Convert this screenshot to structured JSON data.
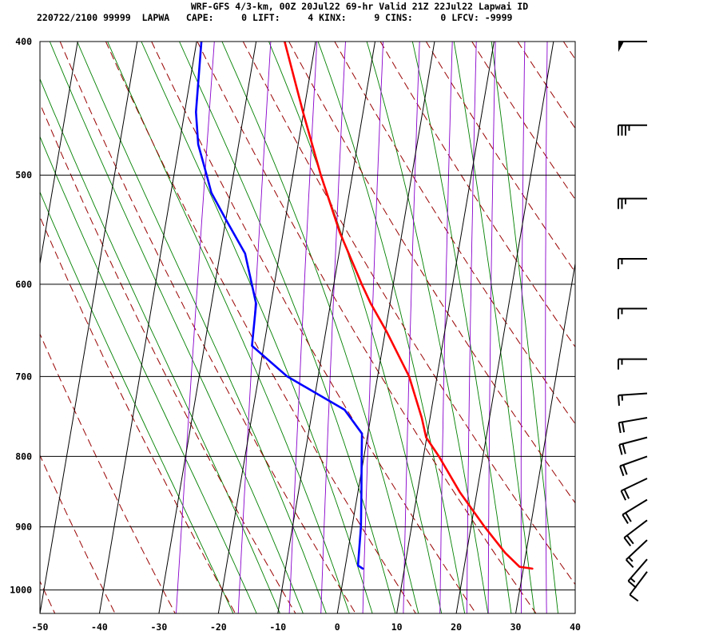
{
  "header": {
    "title_line": "WRF-GFS 4/3-km, 00Z 20Jul22 69-hr Valid 21Z 22Jul22 Lapwai ID",
    "stats_line": "220722/2100 99999  LAPWA   CAPE:     0 LIFT:     4 KINX:     9 CINS:     0 LFCV: -9999"
  },
  "chart_data": {
    "type": "line",
    "diagram": "skew-T log-p sounding",
    "title": "WRF-GFS 4/3-km, 00Z 20Jul22 69-hr Valid 21Z 22Jul22 Lapwai ID",
    "xlabel": "",
    "ylabel": "",
    "x_ticks": [
      "-50",
      "-40",
      "-30",
      "-20",
      "-10",
      "0",
      "10",
      "20",
      "30",
      "40"
    ],
    "p_ticks": [
      "400",
      "500",
      "600",
      "700",
      "800",
      "900",
      "1000"
    ],
    "xlim": [
      -50,
      40
    ],
    "plim": [
      400,
      1040
    ],
    "y_scale": "log",
    "grid": true,
    "colors": {
      "temperature": "#ff0000",
      "dewpoint": "#0000ff",
      "dry_adiabats": "#990000",
      "moist_adiabats": "#008000",
      "mixing_ratio": "#8800cc",
      "grid": "#000000"
    },
    "series": [
      {
        "key": "temperature",
        "p": [
          400,
          450,
          500,
          550,
          600,
          620,
          650,
          700,
          750,
          775,
          800,
          850,
          900,
          940,
          962,
          965
        ],
        "values": [
          -25.2,
          -20.1,
          -15.3,
          -10.5,
          -5.3,
          -3.2,
          0.3,
          5.3,
          8.6,
          9.9,
          12.6,
          17.2,
          22.3,
          26.5,
          29.3,
          31.5
        ]
      },
      {
        "key": "dewpoint",
        "p": [
          400,
          450,
          475,
          500,
          515,
          540,
          570,
          620,
          665,
          700,
          740,
          770,
          800,
          850,
          900,
          960,
          965
        ],
        "values": [
          -39.2,
          -38.1,
          -36.8,
          -34.5,
          -33.2,
          -29.8,
          -25.8,
          -22.5,
          -22.0,
          -15.2,
          -4.6,
          -1.0,
          -0.4,
          0.6,
          1.5,
          2.1,
          3.0
        ]
      }
    ],
    "wind_barbs": [
      {
        "p": 400,
        "flags": 1,
        "full": 0,
        "half": 0
      },
      {
        "p": 460,
        "flags": 0,
        "full": 3,
        "half": 1
      },
      {
        "p": 520,
        "flags": 0,
        "full": 2,
        "half": 1
      },
      {
        "p": 575,
        "flags": 0,
        "full": 1,
        "half": 1
      },
      {
        "p": 625,
        "flags": 0,
        "full": 1,
        "half": 1
      },
      {
        "p": 680,
        "flags": 0,
        "full": 1,
        "half": 1
      },
      {
        "p": 720,
        "flags": 0,
        "full": 1,
        "half": 1
      },
      {
        "p": 750,
        "flags": 0,
        "full": 2,
        "half": 0
      },
      {
        "p": 775,
        "flags": 0,
        "full": 2,
        "half": 0
      },
      {
        "p": 800,
        "flags": 0,
        "full": 2,
        "half": 0
      },
      {
        "p": 830,
        "flags": 0,
        "full": 2,
        "half": 0
      },
      {
        "p": 860,
        "flags": 0,
        "full": 2,
        "half": 0
      },
      {
        "p": 890,
        "flags": 0,
        "full": 2,
        "half": 0
      },
      {
        "p": 920,
        "flags": 0,
        "full": 1,
        "half": 1
      },
      {
        "p": 950,
        "flags": 0,
        "full": 1,
        "half": 1
      },
      {
        "p": 970,
        "flags": 0,
        "full": 1,
        "half": 0
      }
    ]
  }
}
